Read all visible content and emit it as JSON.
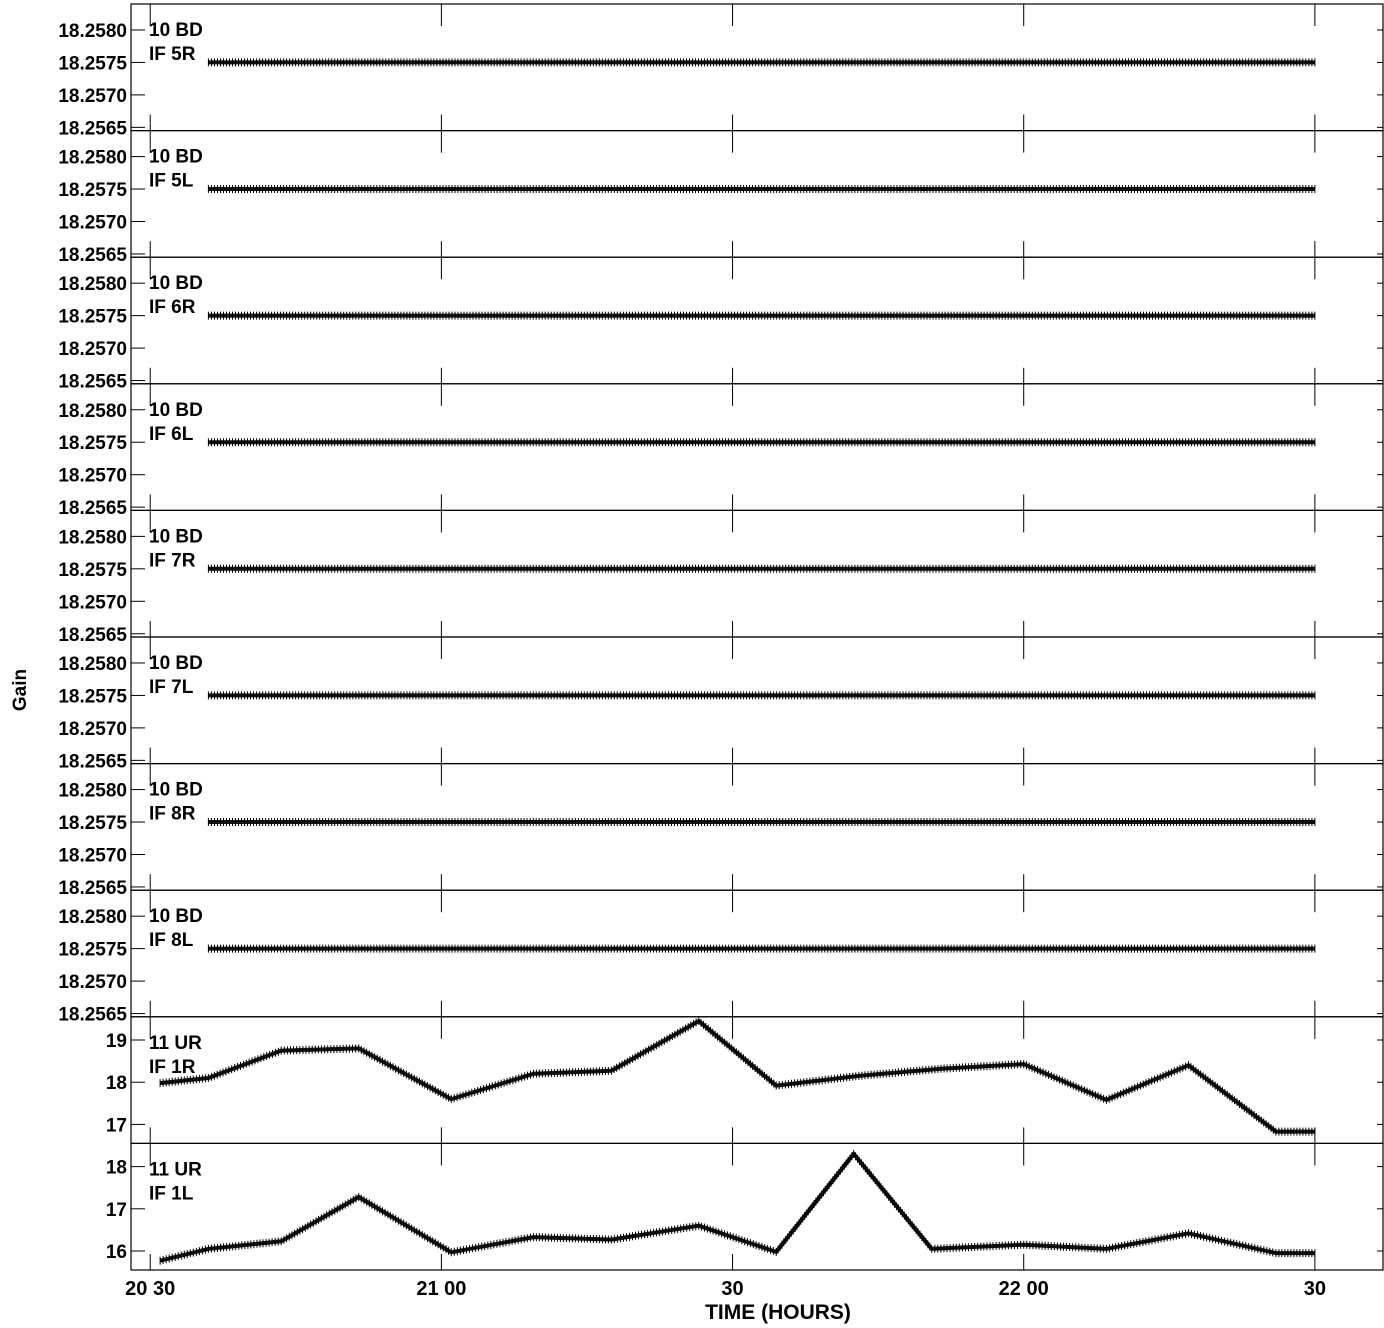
{
  "chart_data": {
    "type": "line",
    "xlabel": "TIME (HOURS)",
    "ylabel": "Gain",
    "x_unit": "hours",
    "xlim": [
      20.467,
      22.617
    ],
    "x_ticks": [
      {
        "value": 20.5,
        "label": "20 30"
      },
      {
        "value": 21.0,
        "label": "21 00"
      },
      {
        "value": 21.5,
        "label": "30"
      },
      {
        "value": 22.0,
        "label": "22 00"
      },
      {
        "value": 22.5,
        "label": "30"
      }
    ],
    "grid": false,
    "panels": [
      {
        "antenna": "10 BD",
        "if": "IF 5R",
        "ylim": [
          18.25645,
          18.2584
        ],
        "y_ticks": [
          {
            "value": 18.2565,
            "label": "18.2565"
          },
          {
            "value": 18.257,
            "label": "18.2570"
          },
          {
            "value": 18.2575,
            "label": "18.2575"
          },
          {
            "value": 18.258,
            "label": "18.2580"
          }
        ],
        "x": [
          20.6,
          22.5
        ],
        "values": [
          18.2575,
          18.2575
        ]
      },
      {
        "antenna": "10 BD",
        "if": "IF 5L",
        "ylim": [
          18.25645,
          18.2584
        ],
        "y_ticks": [
          {
            "value": 18.2565,
            "label": "18.2565"
          },
          {
            "value": 18.257,
            "label": "18.2570"
          },
          {
            "value": 18.2575,
            "label": "18.2575"
          },
          {
            "value": 18.258,
            "label": "18.2580"
          }
        ],
        "x": [
          20.6,
          22.5
        ],
        "values": [
          18.2575,
          18.2575
        ]
      },
      {
        "antenna": "10 BD",
        "if": "IF 6R",
        "ylim": [
          18.25645,
          18.2584
        ],
        "y_ticks": [
          {
            "value": 18.2565,
            "label": "18.2565"
          },
          {
            "value": 18.257,
            "label": "18.2570"
          },
          {
            "value": 18.2575,
            "label": "18.2575"
          },
          {
            "value": 18.258,
            "label": "18.2580"
          }
        ],
        "x": [
          20.6,
          22.5
        ],
        "values": [
          18.2575,
          18.2575
        ]
      },
      {
        "antenna": "10 BD",
        "if": "IF 6L",
        "ylim": [
          18.25645,
          18.2584
        ],
        "y_ticks": [
          {
            "value": 18.2565,
            "label": "18.2565"
          },
          {
            "value": 18.257,
            "label": "18.2570"
          },
          {
            "value": 18.2575,
            "label": "18.2575"
          },
          {
            "value": 18.258,
            "label": "18.2580"
          }
        ],
        "x": [
          20.6,
          22.5
        ],
        "values": [
          18.2575,
          18.2575
        ]
      },
      {
        "antenna": "10 BD",
        "if": "IF 7R",
        "ylim": [
          18.25645,
          18.2584
        ],
        "y_ticks": [
          {
            "value": 18.2565,
            "label": "18.2565"
          },
          {
            "value": 18.257,
            "label": "18.2570"
          },
          {
            "value": 18.2575,
            "label": "18.2575"
          },
          {
            "value": 18.258,
            "label": "18.2580"
          }
        ],
        "x": [
          20.6,
          22.5
        ],
        "values": [
          18.2575,
          18.2575
        ]
      },
      {
        "antenna": "10 BD",
        "if": "IF 7L",
        "ylim": [
          18.25645,
          18.2584
        ],
        "y_ticks": [
          {
            "value": 18.2565,
            "label": "18.2565"
          },
          {
            "value": 18.257,
            "label": "18.2570"
          },
          {
            "value": 18.2575,
            "label": "18.2575"
          },
          {
            "value": 18.258,
            "label": "18.2580"
          }
        ],
        "x": [
          20.6,
          22.5
        ],
        "values": [
          18.2575,
          18.2575
        ]
      },
      {
        "antenna": "10 BD",
        "if": "IF 8R",
        "ylim": [
          18.25645,
          18.2584
        ],
        "y_ticks": [
          {
            "value": 18.2565,
            "label": "18.2565"
          },
          {
            "value": 18.257,
            "label": "18.2570"
          },
          {
            "value": 18.2575,
            "label": "18.2575"
          },
          {
            "value": 18.258,
            "label": "18.2580"
          }
        ],
        "x": [
          20.6,
          22.5
        ],
        "values": [
          18.2575,
          18.2575
        ]
      },
      {
        "antenna": "10 BD",
        "if": "IF 8L",
        "ylim": [
          18.25645,
          18.2584
        ],
        "y_ticks": [
          {
            "value": 18.2565,
            "label": "18.2565"
          },
          {
            "value": 18.257,
            "label": "18.2570"
          },
          {
            "value": 18.2575,
            "label": "18.2575"
          },
          {
            "value": 18.258,
            "label": "18.2580"
          }
        ],
        "x": [
          20.6,
          22.5
        ],
        "values": [
          18.2575,
          18.2575
        ]
      },
      {
        "antenna": "11 UR",
        "if": "IF 1R",
        "ylim": [
          16.55,
          19.55
        ],
        "y_ticks": [
          {
            "value": 17,
            "label": "17"
          },
          {
            "value": 18,
            "label": "18"
          },
          {
            "value": 19,
            "label": "19"
          }
        ],
        "x": [
          20.517,
          20.6,
          20.725,
          20.858,
          21.017,
          21.158,
          21.292,
          21.442,
          21.575,
          21.717,
          21.858,
          22.0,
          22.142,
          22.283,
          22.433,
          22.5
        ],
        "values": [
          17.98,
          18.1,
          18.75,
          18.8,
          17.6,
          18.2,
          18.27,
          19.45,
          17.92,
          18.15,
          18.32,
          18.43,
          17.58,
          18.4,
          16.83,
          16.83
        ]
      },
      {
        "antenna": "11 UR",
        "if": "IF 1L",
        "ylim": [
          15.55,
          18.55
        ],
        "y_ticks": [
          {
            "value": 16,
            "label": "16"
          },
          {
            "value": 17,
            "label": "17"
          },
          {
            "value": 18,
            "label": "18"
          }
        ],
        "x": [
          20.517,
          20.6,
          20.725,
          20.858,
          21.017,
          21.158,
          21.292,
          21.442,
          21.575,
          21.708,
          21.842,
          22.0,
          22.142,
          22.283,
          22.433,
          22.5
        ],
        "values": [
          15.77,
          16.05,
          16.23,
          17.28,
          15.97,
          16.33,
          16.27,
          16.6,
          15.98,
          18.3,
          16.05,
          16.15,
          16.05,
          16.42,
          15.95,
          15.95
        ]
      }
    ]
  }
}
